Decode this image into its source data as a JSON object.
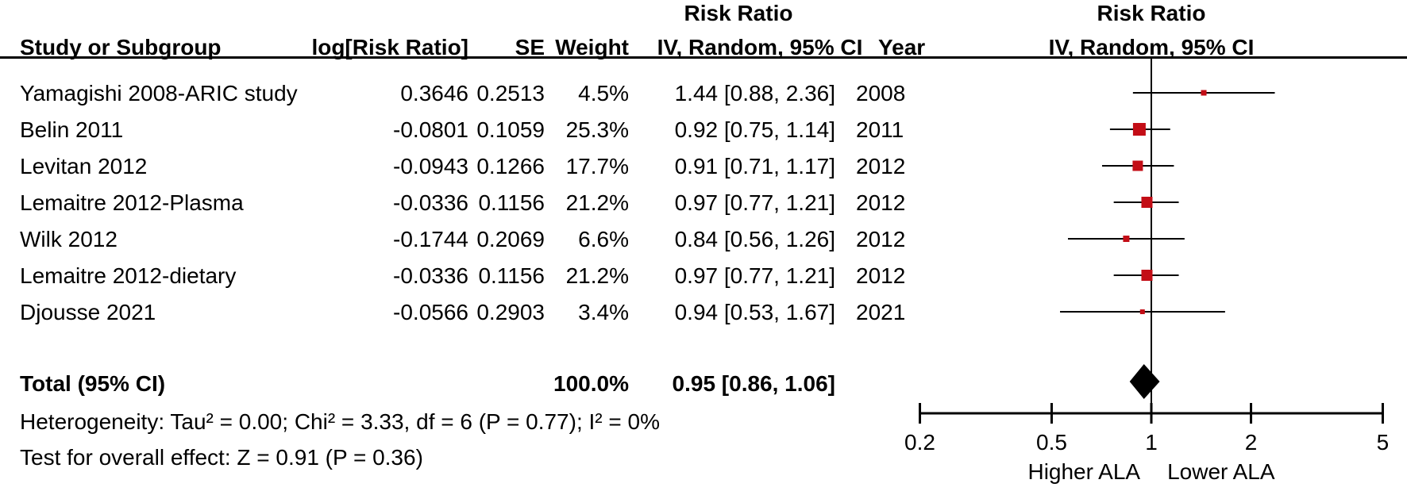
{
  "titles": {
    "left_effect_title": "Risk Ratio",
    "right_effect_title": "Risk Ratio",
    "right_effect_subtitle": "IV, Random, 95% CI"
  },
  "table": {
    "headers": {
      "study": "Study or Subgroup",
      "log_rr": "log[Risk Ratio]",
      "se": "SE",
      "weight": "Weight",
      "ci": "IV, Random, 95% CI",
      "year": "Year"
    },
    "rows": [
      {
        "study": "Yamagishi 2008-ARIC study",
        "log_rr": "0.3646",
        "se": "0.2513",
        "weight": "4.5%",
        "ci": "1.44 [0.88, 2.36]",
        "year": "2008"
      },
      {
        "study": "Belin 2011",
        "log_rr": "-0.0801",
        "se": "0.1059",
        "weight": "25.3%",
        "ci": "0.92 [0.75, 1.14]",
        "year": "2011"
      },
      {
        "study": "Levitan 2012",
        "log_rr": "-0.0943",
        "se": "0.1266",
        "weight": "17.7%",
        "ci": "0.91 [0.71, 1.17]",
        "year": "2012"
      },
      {
        "study": "Lemaitre 2012-Plasma",
        "log_rr": "-0.0336",
        "se": "0.1156",
        "weight": "21.2%",
        "ci": "0.97 [0.77, 1.21]",
        "year": "2012"
      },
      {
        "study": "Wilk 2012",
        "log_rr": "-0.1744",
        "se": "0.2069",
        "weight": "6.6%",
        "ci": "0.84 [0.56, 1.26]",
        "year": "2012"
      },
      {
        "study": "Lemaitre 2012-dietary",
        "log_rr": "-0.0336",
        "se": "0.1156",
        "weight": "21.2%",
        "ci": "0.97 [0.77, 1.21]",
        "year": "2012"
      },
      {
        "study": "Djousse 2021",
        "log_rr": "-0.0566",
        "se": "0.2903",
        "weight": "3.4%",
        "ci": "0.94 [0.53, 1.67]",
        "year": "2021"
      }
    ],
    "total_row": {
      "label": "Total (95% CI)",
      "weight": "100.0%",
      "ci": "0.95 [0.86, 1.06]"
    },
    "footer": {
      "heterogeneity": "Heterogeneity: Tau² = 0.00; Chi² = 3.33, df = 6 (P = 0.77); I² = 0%",
      "overall_effect": "Test for overall effect: Z = 0.91 (P = 0.36)"
    }
  },
  "chart_data": {
    "type": "forest",
    "effect_measure": "Risk Ratio",
    "model": "IV, Random, 95% CI",
    "x_axis": {
      "scale": "log",
      "min": 0.2,
      "max": 5,
      "ticks": [
        0.2,
        0.5,
        1,
        2,
        5
      ],
      "null_line": 1,
      "label_left": "Higher ALA",
      "label_right": "Lower ALA"
    },
    "studies": [
      {
        "study": "Yamagishi 2008-ARIC study",
        "log_rr": 0.3646,
        "se": 0.2513,
        "weight": 4.5,
        "rr": 1.44,
        "ci_low": 0.88,
        "ci_high": 2.36,
        "year": 2008
      },
      {
        "study": "Belin 2011",
        "log_rr": -0.0801,
        "se": 0.1059,
        "weight": 25.3,
        "rr": 0.92,
        "ci_low": 0.75,
        "ci_high": 1.14,
        "year": 2011
      },
      {
        "study": "Levitan 2012",
        "log_rr": -0.0943,
        "se": 0.1266,
        "weight": 17.7,
        "rr": 0.91,
        "ci_low": 0.71,
        "ci_high": 1.17,
        "year": 2012
      },
      {
        "study": "Lemaitre 2012-Plasma",
        "log_rr": -0.0336,
        "se": 0.1156,
        "weight": 21.2,
        "rr": 0.97,
        "ci_low": 0.77,
        "ci_high": 1.21,
        "year": 2012
      },
      {
        "study": "Wilk 2012",
        "log_rr": -0.1744,
        "se": 0.2069,
        "weight": 6.6,
        "rr": 0.84,
        "ci_low": 0.56,
        "ci_high": 1.26,
        "year": 2012
      },
      {
        "study": "Lemaitre 2012-dietary",
        "log_rr": -0.0336,
        "se": 0.1156,
        "weight": 21.2,
        "rr": 0.97,
        "ci_low": 0.77,
        "ci_high": 1.21,
        "year": 2012
      },
      {
        "study": "Djousse 2021",
        "log_rr": -0.0566,
        "se": 0.2903,
        "weight": 3.4,
        "rr": 0.94,
        "ci_low": 0.53,
        "ci_high": 1.67,
        "year": 2021
      }
    ],
    "total": {
      "label": "Total (95% CI)",
      "weight": 100.0,
      "rr": 0.95,
      "ci_low": 0.86,
      "ci_high": 1.06
    },
    "heterogeneity": "Heterogeneity: Tau² = 0.00; Chi² = 3.33, df = 6 (P = 0.77); I² = 0%",
    "overall_effect": "Test for overall effect: Z = 0.91 (P = 0.36)",
    "marker_color": "#C30D16",
    "diamond_color": "#000000",
    "line_color": "#000000"
  }
}
